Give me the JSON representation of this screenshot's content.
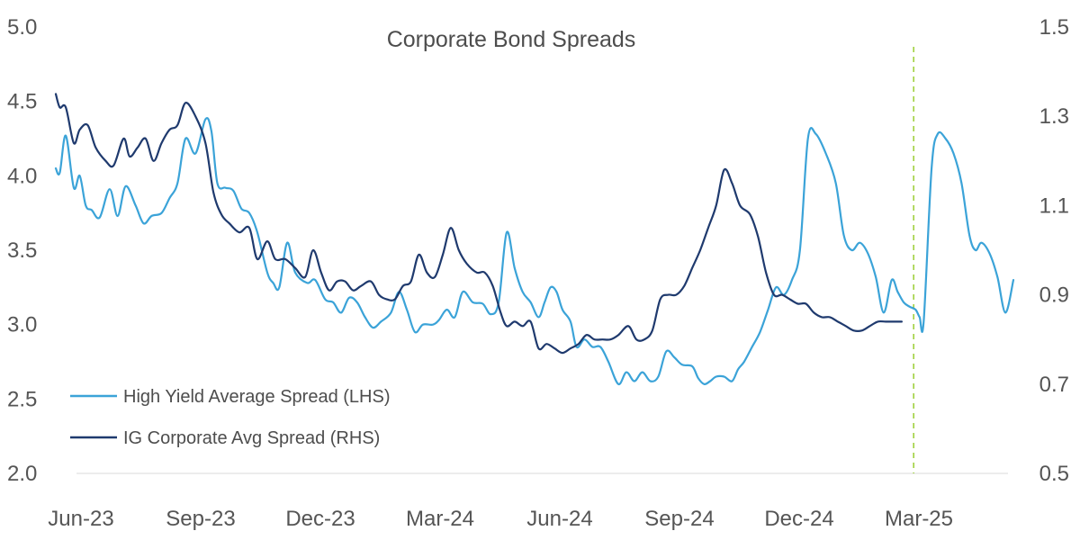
{
  "chart_data": {
    "type": "line",
    "title": "Corporate Bond Spreads",
    "x_labels": [
      "Jun-23",
      "Sep-23",
      "Dec-23",
      "Mar-24",
      "Jun-24",
      "Sep-24",
      "Dec-24",
      "Mar-25"
    ],
    "x_range": [
      0,
      24
    ],
    "left_axis": {
      "ylim": [
        2.0,
        5.0
      ],
      "ticks": [
        2.0,
        2.5,
        3.0,
        3.5,
        4.0,
        4.5,
        5.0
      ],
      "tick_labels": [
        "2.0",
        "2.5",
        "3.0",
        "3.5",
        "4.0",
        "4.5",
        "5.0"
      ]
    },
    "right_axis": {
      "ylim": [
        0.5,
        1.5
      ],
      "ticks": [
        0.5,
        0.7,
        0.9,
        1.1,
        1.3,
        1.5
      ],
      "tick_labels": [
        "0.5",
        "0.7",
        "0.9",
        "1.1",
        "1.3",
        "1.5"
      ]
    },
    "vertical_marker": {
      "x": 21.5,
      "color": "#9ACD32",
      "style": "dashed"
    },
    "series": [
      {
        "name": "High Yield Average Spread (LHS)",
        "axis": "left",
        "color": "#3BA3D8",
        "x": [
          0,
          0.1,
          0.25,
          0.45,
          0.6,
          0.75,
          0.9,
          1.1,
          1.35,
          1.55,
          1.75,
          2.0,
          2.2,
          2.4,
          2.65,
          2.85,
          3.05,
          3.25,
          3.5,
          3.75,
          3.9,
          4.05,
          4.25,
          4.45,
          4.65,
          4.85,
          5.05,
          5.3,
          5.45,
          5.6,
          5.8,
          6.0,
          6.3,
          6.5,
          6.75,
          6.95,
          7.15,
          7.35,
          7.55,
          7.75,
          7.95,
          8.15,
          8.4,
          8.6,
          8.8,
          9.0,
          9.2,
          9.45,
          9.6,
          9.8,
          10.0,
          10.2,
          10.45,
          10.7,
          10.9,
          11.1,
          11.3,
          11.5,
          11.7,
          11.9,
          12.1,
          12.25,
          12.4,
          12.55,
          12.7,
          12.9,
          13.05,
          13.25,
          13.45,
          13.65,
          13.85,
          14.1,
          14.3,
          14.5,
          14.7,
          14.9,
          15.1,
          15.3,
          15.5,
          15.7,
          15.95,
          16.1,
          16.25,
          16.4,
          16.55,
          16.75,
          16.95,
          17.1,
          17.25,
          17.45,
          17.65,
          17.85,
          18.05,
          18.25,
          18.45,
          18.65,
          18.85,
          19.05,
          19.3,
          19.55,
          19.75,
          19.95,
          20.15,
          20.35,
          20.55,
          20.75,
          20.95,
          21.1,
          21.25,
          21.4,
          21.55,
          21.65,
          21.75,
          21.95,
          22.1,
          22.3,
          22.5,
          22.7,
          22.9,
          23.05,
          23.2,
          23.4,
          23.6,
          23.8,
          24.0
        ],
        "values": [
          4.05,
          4.02,
          4.27,
          3.92,
          4.0,
          3.8,
          3.77,
          3.72,
          3.91,
          3.73,
          3.93,
          3.8,
          3.68,
          3.73,
          3.75,
          3.85,
          3.95,
          4.25,
          4.15,
          4.38,
          4.3,
          3.95,
          3.92,
          3.9,
          3.78,
          3.75,
          3.62,
          3.35,
          3.28,
          3.25,
          3.55,
          3.35,
          3.28,
          3.3,
          3.17,
          3.15,
          3.08,
          3.18,
          3.15,
          3.05,
          2.98,
          3.02,
          3.08,
          3.22,
          3.1,
          2.95,
          3.0,
          3.0,
          3.03,
          3.1,
          3.05,
          3.22,
          3.15,
          3.14,
          3.07,
          3.15,
          3.62,
          3.38,
          3.22,
          3.15,
          3.05,
          3.15,
          3.25,
          3.22,
          3.1,
          3.02,
          2.85,
          2.9,
          2.85,
          2.85,
          2.75,
          2.6,
          2.68,
          2.62,
          2.68,
          2.62,
          2.65,
          2.82,
          2.78,
          2.73,
          2.72,
          2.64,
          2.6,
          2.62,
          2.65,
          2.65,
          2.62,
          2.7,
          2.75,
          2.85,
          2.95,
          3.1,
          3.25,
          3.2,
          3.3,
          3.5,
          4.25,
          4.28,
          4.15,
          3.95,
          3.6,
          3.5,
          3.55,
          3.48,
          3.32,
          3.08,
          3.3,
          3.22,
          3.15,
          3.12,
          3.1,
          3.05,
          3.02,
          4.05,
          4.28,
          4.25,
          4.15,
          3.95,
          3.6,
          3.5,
          3.55,
          3.48,
          3.32,
          3.08,
          3.3
        ]
      },
      {
        "name": "IG Corporate Avg Spread (RHS)",
        "axis": "right",
        "color": "#1F3A6E",
        "x": [
          0,
          0.1,
          0.25,
          0.45,
          0.6,
          0.8,
          1.0,
          1.25,
          1.45,
          1.7,
          1.85,
          2.05,
          2.25,
          2.45,
          2.65,
          2.85,
          3.05,
          3.25,
          3.5,
          3.75,
          3.95,
          4.15,
          4.35,
          4.6,
          4.85,
          5.05,
          5.3,
          5.5,
          5.75,
          6.0,
          6.25,
          6.45,
          6.65,
          6.85,
          7.05,
          7.25,
          7.45,
          7.65,
          7.9,
          8.1,
          8.3,
          8.5,
          8.7,
          8.9,
          9.1,
          9.3,
          9.5,
          9.7,
          9.9,
          10.1,
          10.3,
          10.55,
          10.75,
          10.95,
          11.15,
          11.3,
          11.5,
          11.7,
          11.9,
          12.1,
          12.3,
          12.5,
          12.7,
          12.9,
          13.1,
          13.3,
          13.5,
          13.7,
          13.9,
          14.1,
          14.35,
          14.55,
          14.75,
          14.95,
          15.15,
          15.35,
          15.55,
          15.75,
          15.95,
          16.15,
          16.35,
          16.55,
          16.75,
          16.95,
          17.15,
          17.4,
          17.6,
          17.8,
          18.0,
          18.2,
          18.4,
          18.6,
          18.8,
          19.0,
          19.2,
          19.4,
          19.6,
          19.8,
          20.0,
          20.2,
          20.4,
          20.6,
          20.8,
          21.0,
          21.2
        ],
        "values": [
          1.35,
          1.32,
          1.32,
          1.24,
          1.27,
          1.28,
          1.23,
          1.2,
          1.19,
          1.25,
          1.21,
          1.23,
          1.25,
          1.2,
          1.24,
          1.27,
          1.28,
          1.33,
          1.3,
          1.24,
          1.13,
          1.08,
          1.06,
          1.04,
          1.05,
          0.98,
          1.02,
          0.98,
          0.98,
          0.96,
          0.94,
          1.0,
          0.95,
          0.91,
          0.93,
          0.93,
          0.91,
          0.92,
          0.93,
          0.9,
          0.89,
          0.89,
          0.92,
          0.93,
          0.99,
          0.95,
          0.94,
          0.99,
          1.05,
          1.0,
          0.97,
          0.95,
          0.95,
          0.92,
          0.86,
          0.83,
          0.84,
          0.83,
          0.84,
          0.78,
          0.79,
          0.78,
          0.77,
          0.78,
          0.79,
          0.81,
          0.8,
          0.8,
          0.8,
          0.81,
          0.83,
          0.8,
          0.8,
          0.82,
          0.89,
          0.9,
          0.9,
          0.92,
          0.96,
          1.0,
          1.05,
          1.1,
          1.18,
          1.15,
          1.1,
          1.08,
          1.03,
          0.95,
          0.9,
          0.9,
          0.89,
          0.88,
          0.88,
          0.86,
          0.85,
          0.85,
          0.84,
          0.83,
          0.82,
          0.82,
          0.83,
          0.84,
          0.84,
          0.84,
          0.84
        ]
      }
    ],
    "legend": {
      "position": "bottom-left",
      "entries": [
        {
          "label": "High Yield Average Spread (LHS)",
          "color": "#3BA3D8"
        },
        {
          "label": "IG Corporate Avg Spread (RHS)",
          "color": "#1F3A6E"
        }
      ]
    },
    "grid": false
  }
}
